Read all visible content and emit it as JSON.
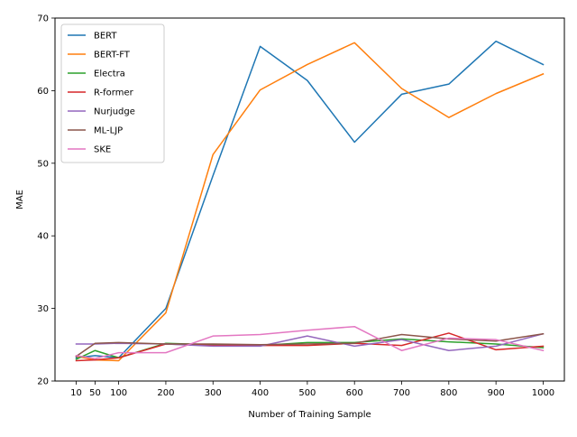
{
  "chart_data": {
    "type": "line",
    "title": "",
    "xlabel": "Number of Training Sample",
    "ylabel": "MAE",
    "x": [
      10,
      50,
      100,
      200,
      300,
      400,
      500,
      600,
      700,
      800,
      900,
      1000
    ],
    "xticks": [
      "10",
      "50",
      "100",
      "200",
      "300",
      "400",
      "500",
      "600",
      "700",
      "800",
      "900",
      "1000"
    ],
    "yticks": [
      "20",
      "30",
      "40",
      "50",
      "60",
      "70"
    ],
    "xlim": [
      -35,
      1045
    ],
    "ylim": [
      20,
      70
    ],
    "grid": false,
    "legend_position": "upper-left",
    "series": [
      {
        "name": "BERT",
        "color": "#1f77b4",
        "values": [
          23.2,
          23.5,
          23.2,
          30.0,
          48.3,
          66.1,
          61.4,
          52.9,
          59.5,
          60.9,
          66.8,
          63.6
        ]
      },
      {
        "name": "BERT-FT",
        "color": "#ff7f0e",
        "values": [
          23.4,
          22.9,
          22.8,
          29.4,
          51.2,
          60.1,
          63.6,
          66.6,
          60.3,
          56.3,
          59.6,
          62.3
        ]
      },
      {
        "name": "Electra",
        "color": "#2ca02c",
        "values": [
          23.0,
          24.2,
          23.2,
          25.2,
          25.0,
          24.9,
          25.3,
          25.3,
          25.8,
          25.4,
          25.1,
          24.6
        ]
      },
      {
        "name": "R-former",
        "color": "#d62728",
        "values": [
          22.8,
          22.9,
          23.2,
          25.1,
          24.9,
          24.9,
          24.9,
          25.2,
          24.9,
          26.6,
          24.3,
          24.8
        ]
      },
      {
        "name": "Nurjudge",
        "color": "#9467bd",
        "values": [
          25.1,
          25.1,
          25.2,
          25.1,
          24.8,
          24.8,
          26.2,
          24.8,
          25.7,
          24.2,
          24.8,
          26.5
        ]
      },
      {
        "name": "ML-LJP",
        "color": "#8c564b",
        "values": [
          23.4,
          25.2,
          25.3,
          25.1,
          25.1,
          25.0,
          25.1,
          25.2,
          26.4,
          25.8,
          25.5,
          26.5
        ]
      },
      {
        "name": "SKE",
        "color": "#e377c2",
        "values": [
          23.5,
          23.1,
          23.9,
          23.9,
          26.2,
          26.4,
          27.0,
          27.5,
          24.2,
          25.9,
          25.7,
          24.2
        ]
      }
    ]
  }
}
